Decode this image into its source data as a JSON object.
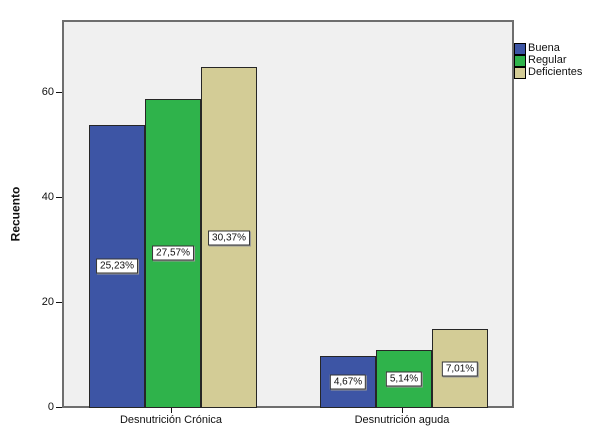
{
  "figure": {
    "background": "#ffffff",
    "plot_border_color": "#6e6e6e"
  },
  "chart_data": {
    "type": "bar",
    "title": "",
    "xlabel": "",
    "ylabel": "Recuento",
    "categories": [
      "Desnutrición Crónica",
      "Desnutrición aguda"
    ],
    "series": [
      {
        "name": "Buena",
        "color": "#3d55a5",
        "values": [
          54,
          10
        ],
        "percent_labels": [
          "25,23%",
          "4,67%"
        ]
      },
      {
        "name": "Regular",
        "color": "#2fb34b",
        "values": [
          59,
          11
        ],
        "percent_labels": [
          "27,57%",
          "5,14%"
        ]
      },
      {
        "name": "Deficientes",
        "color": "#d3cc96",
        "values": [
          65,
          15
        ],
        "percent_labels": [
          "30,37%",
          "7,01%"
        ]
      }
    ],
    "yticks": [
      0,
      20,
      40,
      60
    ],
    "ylim": [
      0,
      74
    ],
    "grid": false,
    "legend_position": "top-right-outside",
    "plot_background": "#f0f0f0"
  }
}
